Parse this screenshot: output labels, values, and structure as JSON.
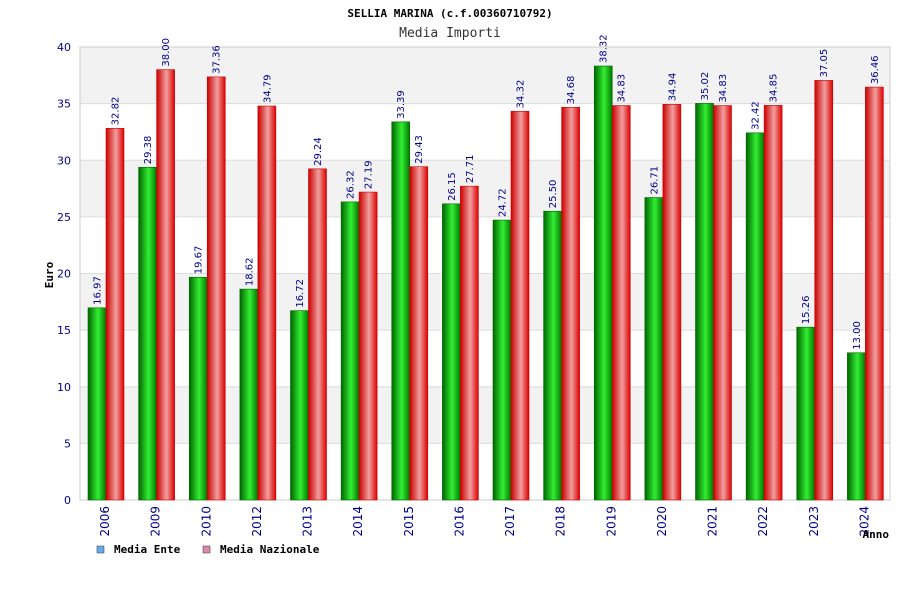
{
  "chart_data": {
    "type": "bar",
    "title": "SELLIA MARINA (c.f.00360710792)",
    "subtitle": "Media Importi",
    "xlabel": "Anno",
    "ylabel": "Euro",
    "ylim": [
      0,
      40
    ],
    "yticks": [
      0,
      5,
      10,
      15,
      20,
      25,
      30,
      35,
      40
    ],
    "grid": true,
    "legend_position": "bottom-left",
    "categories": [
      "2006",
      "2009",
      "2010",
      "2012",
      "2013",
      "2014",
      "2015",
      "2016",
      "2017",
      "2018",
      "2019",
      "2020",
      "2021",
      "2022",
      "2023",
      "2024"
    ],
    "series": [
      {
        "name": "Media Ente",
        "values": [
          16.97,
          29.38,
          19.67,
          18.62,
          16.72,
          26.32,
          33.39,
          26.15,
          24.72,
          25.5,
          38.32,
          26.71,
          35.02,
          32.42,
          15.26,
          13.0
        ],
        "labels": [
          "16.97",
          "29.38",
          "19.67",
          "18.62",
          "16.72",
          "26.32",
          "33.39",
          "26.15",
          "24.72",
          "25.50",
          "38.32",
          "26.71",
          "35.02",
          "32.42",
          "15.26",
          "13.00"
        ]
      },
      {
        "name": "Media Nazionale",
        "values": [
          32.82,
          38.0,
          37.36,
          34.79,
          29.24,
          27.19,
          29.43,
          27.71,
          34.32,
          34.68,
          34.83,
          34.94,
          34.83,
          34.85,
          37.05,
          36.46
        ],
        "labels": [
          "32.82",
          "38.00",
          "37.36",
          "34.79",
          "29.24",
          "27.19",
          "29.43",
          "27.71",
          "34.32",
          "34.68",
          "34.83",
          "34.94",
          "34.83",
          "34.85",
          "37.05",
          "36.46"
        ]
      }
    ],
    "colors": {
      "ente_dark": "#008800",
      "ente_light": "#33ee33",
      "nazionale_dark": "#dd0000",
      "nazionale_light": "#ee9999",
      "legend_ente": "#66aaee",
      "legend_nazionale": "#dd88aa",
      "band": "#f2f2f2",
      "grid": "#dcdcdc"
    }
  }
}
